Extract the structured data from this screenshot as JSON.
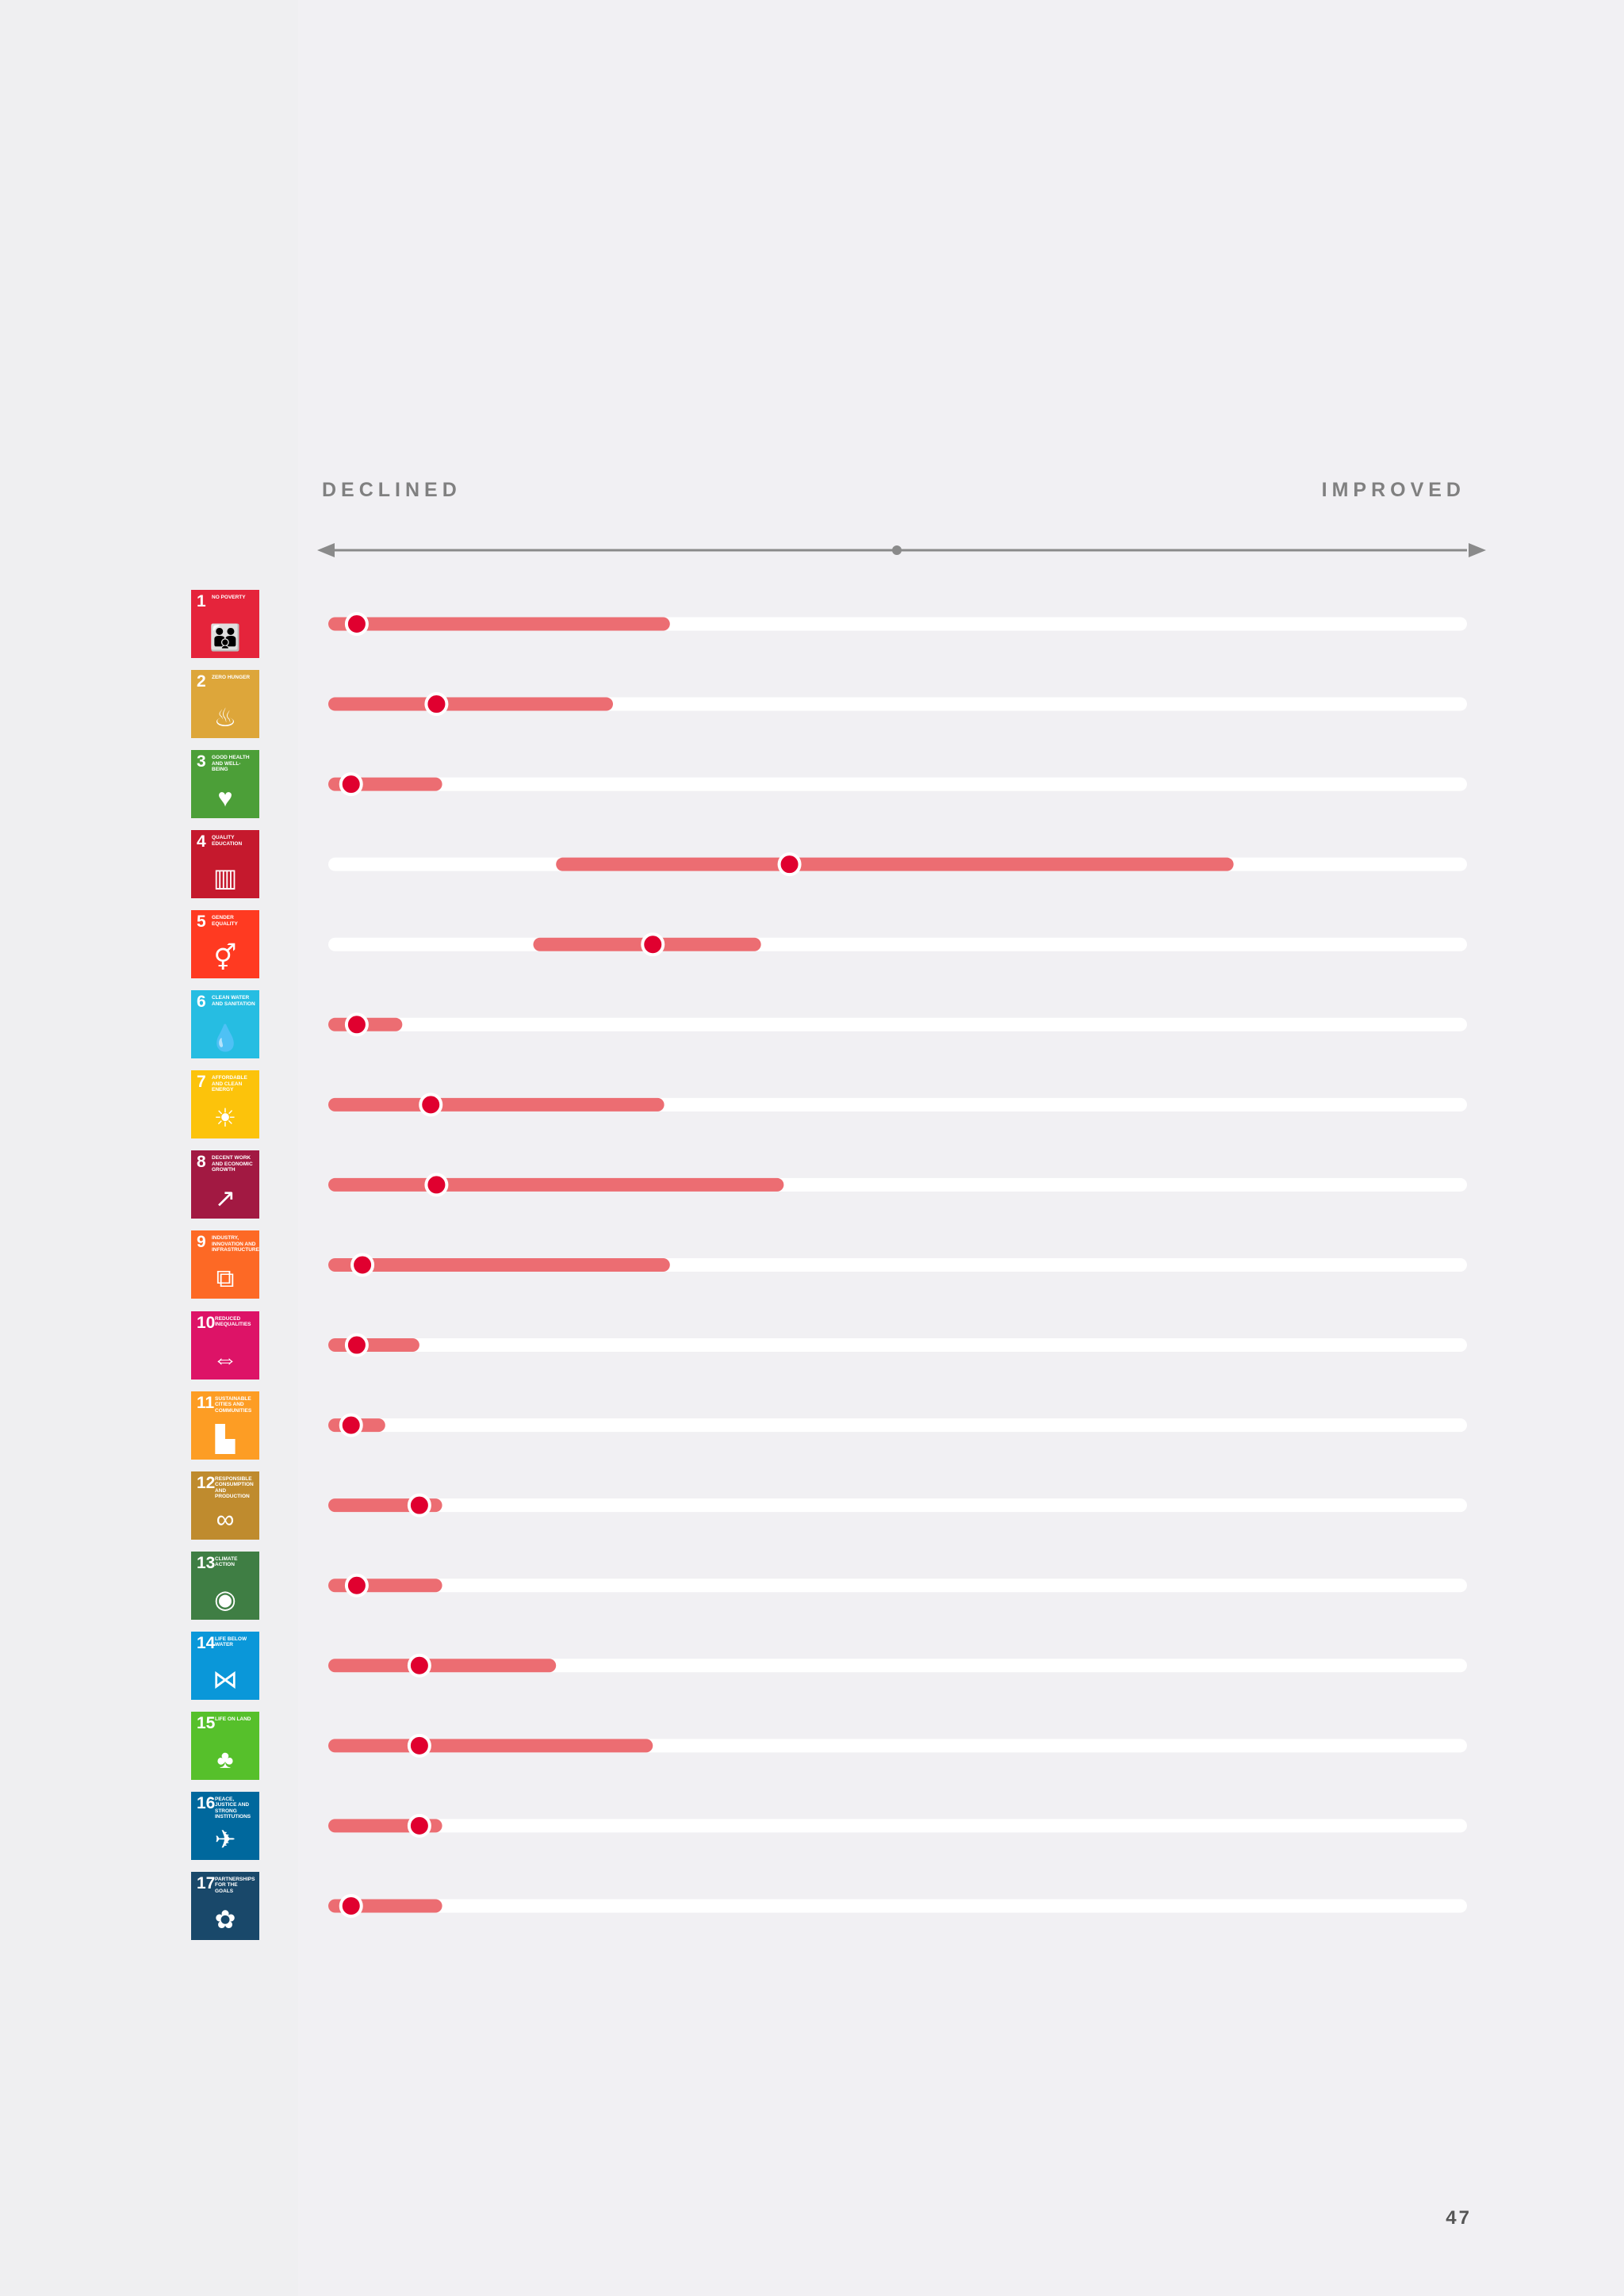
{
  "header": {
    "left_label": "DECLINED",
    "right_label": "IMPROVED"
  },
  "page_number": "47",
  "colors": {
    "range_bar": "#ec6d72",
    "track": "#ffffff",
    "marker": "#e0002f",
    "marker_stroke": "#ffffff",
    "axis": "#8a8a8a"
  },
  "goals": [
    {
      "num": "1",
      "title": "NO POVERTY",
      "icon": "family-icon",
      "color": "#e5243b"
    },
    {
      "num": "2",
      "title": "ZERO HUNGER",
      "icon": "bowl-icon",
      "color": "#dda63a"
    },
    {
      "num": "3",
      "title": "GOOD HEALTH AND WELL-BEING",
      "icon": "heartbeat-icon",
      "color": "#4c9f38"
    },
    {
      "num": "4",
      "title": "QUALITY EDUCATION",
      "icon": "book-icon",
      "color": "#c5192d"
    },
    {
      "num": "5",
      "title": "GENDER EQUALITY",
      "icon": "gender-icon",
      "color": "#ff3a21"
    },
    {
      "num": "6",
      "title": "CLEAN WATER AND SANITATION",
      "icon": "water-glass-icon",
      "color": "#26bde2"
    },
    {
      "num": "7",
      "title": "AFFORDABLE AND CLEAN ENERGY",
      "icon": "sun-icon",
      "color": "#fcc30b"
    },
    {
      "num": "8",
      "title": "DECENT WORK AND ECONOMIC GROWTH",
      "icon": "growth-chart-icon",
      "color": "#a21942"
    },
    {
      "num": "9",
      "title": "INDUSTRY, INNOVATION AND INFRASTRUCTURE",
      "icon": "cubes-icon",
      "color": "#fd6925"
    },
    {
      "num": "10",
      "title": "REDUCED INEQUALITIES",
      "icon": "equal-arrows-icon",
      "color": "#dd1367"
    },
    {
      "num": "11",
      "title": "SUSTAINABLE CITIES AND COMMUNITIES",
      "icon": "city-icon",
      "color": "#fd9d24"
    },
    {
      "num": "12",
      "title": "RESPONSIBLE CONSUMPTION AND PRODUCTION",
      "icon": "infinity-icon",
      "color": "#bf8b2e"
    },
    {
      "num": "13",
      "title": "CLIMATE ACTION",
      "icon": "eye-globe-icon",
      "color": "#3f7e44"
    },
    {
      "num": "14",
      "title": "LIFE BELOW WATER",
      "icon": "fish-icon",
      "color": "#0a97d9"
    },
    {
      "num": "15",
      "title": "LIFE ON LAND",
      "icon": "tree-icon",
      "color": "#56c02b"
    },
    {
      "num": "16",
      "title": "PEACE, JUSTICE AND STRONG INSTITUTIONS",
      "icon": "dove-icon",
      "color": "#00689d"
    },
    {
      "num": "17",
      "title": "PARTNERSHIPS FOR THE GOALS",
      "icon": "flower-rings-icon",
      "color": "#19486a"
    }
  ],
  "chart_data": {
    "type": "range",
    "x_range": [
      -100,
      100
    ],
    "left_label": "DECLINED",
    "right_label": "IMPROVED",
    "categories": [
      "1",
      "2",
      "3",
      "4",
      "5",
      "6",
      "7",
      "8",
      "9",
      "10",
      "11",
      "12",
      "13",
      "14",
      "15",
      "16",
      "17"
    ],
    "ranges": [
      [
        -100,
        -40
      ],
      [
        -100,
        -50
      ],
      [
        -100,
        -80
      ],
      [
        -60,
        59
      ],
      [
        -64,
        -24
      ],
      [
        -100,
        -87
      ],
      [
        -100,
        -41
      ],
      [
        -100,
        -20
      ],
      [
        -100,
        -40
      ],
      [
        -100,
        -84
      ],
      [
        -100,
        -90
      ],
      [
        -100,
        -80
      ],
      [
        -100,
        -80
      ],
      [
        -100,
        -60
      ],
      [
        -100,
        -43
      ],
      [
        -100,
        -80
      ],
      [
        -100,
        -80
      ]
    ],
    "markers": [
      -95,
      -81,
      -96,
      -19,
      -43,
      -95,
      -82,
      -81,
      -94,
      -95,
      -96,
      -84,
      -95,
      -84,
      -84,
      -84,
      -96
    ]
  }
}
